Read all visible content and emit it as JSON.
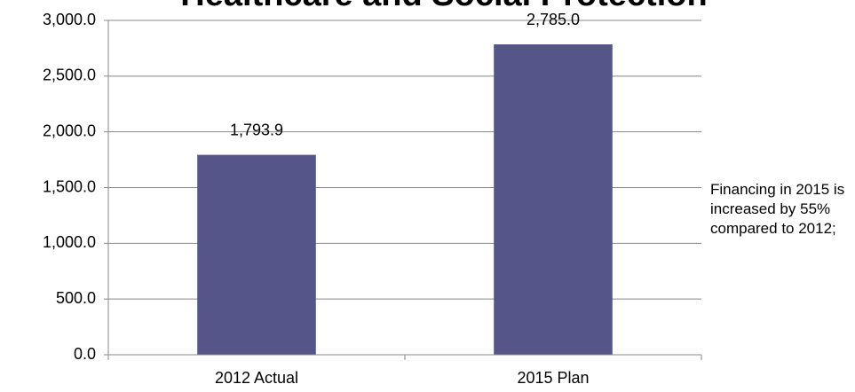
{
  "chart_data": {
    "type": "bar",
    "title": "Healthcare and Social Protection",
    "categories": [
      "2012 Actual",
      "2015 Plan"
    ],
    "values": [
      1793.9,
      2785.0
    ],
    "value_labels": [
      "1,793.9",
      "2,785.0"
    ],
    "color": "#55558a",
    "ylim": [
      0,
      3000
    ],
    "yticks": [
      {
        "value": 0,
        "label": "0.0"
      },
      {
        "value": 500,
        "label": "500.0"
      },
      {
        "value": 1000,
        "label": "1,000.0"
      },
      {
        "value": 1500,
        "label": "1,500.0"
      },
      {
        "value": 2000,
        "label": "2,000.0"
      },
      {
        "value": 2500,
        "label": "2,500.0"
      },
      {
        "value": 3000,
        "label": "3,000.0"
      }
    ],
    "grid": true,
    "annotation": "Financing in 2015 is increased by 55% compared to 2012;"
  }
}
